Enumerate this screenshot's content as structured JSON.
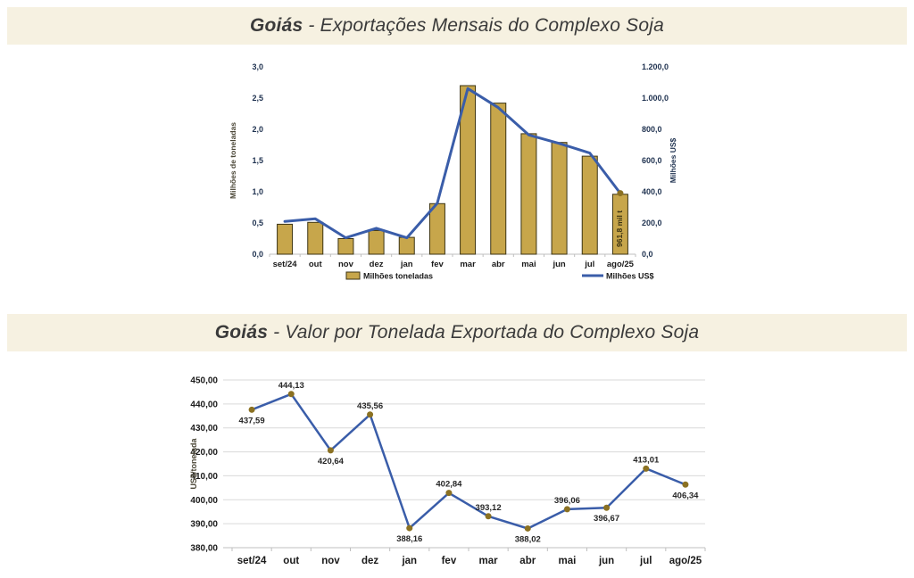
{
  "page": {
    "background": "#FFFFFF",
    "band_color": "#F6F1E1",
    "title_color": "#3A3A3A"
  },
  "banners": [
    {
      "bold": "Goiás",
      "rest": " - Exportações Mensais do Complexo Soja"
    },
    {
      "bold": "Goiás",
      "rest": " - Valor por Tonelada Exportada do Complexo Soja"
    }
  ],
  "chart_data": [
    {
      "type": "combo-bar-line",
      "categories": [
        "set/24",
        "out",
        "nov",
        "dez",
        "jan",
        "fev",
        "mar",
        "abr",
        "mai",
        "jun",
        "jul",
        "ago/25"
      ],
      "series": [
        {
          "name": "Milhões toneladas",
          "render": "bar",
          "axis": "left",
          "color": "#C7A64B",
          "border_color": "#3B3313",
          "values": [
            0.48,
            0.51,
            0.25,
            0.38,
            0.27,
            0.81,
            2.7,
            2.42,
            1.93,
            1.79,
            1.57,
            0.96
          ]
        },
        {
          "name": "Milhões US$",
          "render": "line",
          "axis": "right",
          "color": "#3A5DA9",
          "marker_color": "#8B7122",
          "values": [
            210,
            227,
            105,
            166,
            105,
            326,
            1061,
            939,
            764,
            710,
            648,
            391
          ]
        }
      ],
      "left_axis": {
        "label": "Milhões de toneladas",
        "min": 0,
        "max": 3,
        "tick_labels": [
          "0,0",
          "0,5",
          "1,0",
          "1,5",
          "2,0",
          "2,5",
          "3,0"
        ]
      },
      "right_axis": {
        "label": "Milhões US$",
        "min": 0,
        "max": 1200,
        "tick_labels": [
          "0,0",
          "200,0",
          "400,0",
          "600,0",
          "800,0",
          "1.000,0",
          "1.200,0"
        ]
      },
      "annotation": {
        "category_index": 11,
        "text": "961,8 mil t"
      },
      "legend_position": "bottom",
      "grid": false
    },
    {
      "type": "line",
      "categories": [
        "set/24",
        "out",
        "nov",
        "dez",
        "jan",
        "fev",
        "mar",
        "abr",
        "mai",
        "jun",
        "jul",
        "ago/25"
      ],
      "values": [
        437.59,
        444.13,
        420.64,
        435.56,
        388.16,
        402.84,
        393.12,
        388.02,
        396.06,
        396.67,
        413.01,
        406.34
      ],
      "point_labels": [
        "437,59",
        "444,13",
        "420,64",
        "435,56",
        "388,16",
        "402,84",
        "393,12",
        "388,02",
        "396,06",
        "396,67",
        "413,01",
        "406,34"
      ],
      "label_positions": [
        "below",
        "above",
        "below",
        "above",
        "below",
        "above",
        "above",
        "below",
        "above",
        "below",
        "above",
        "below"
      ],
      "ylabel": "US$/tonelada",
      "ylim": [
        380,
        450
      ],
      "y_tick_labels": [
        "380,00",
        "390,00",
        "400,00",
        "410,00",
        "420,00",
        "430,00",
        "440,00",
        "450,00"
      ],
      "line_color": "#3A5DA9",
      "marker_color": "#8B7122",
      "grid": true,
      "grid_color": "#D9D9D9",
      "axis_color": "#BFBFBF"
    }
  ]
}
